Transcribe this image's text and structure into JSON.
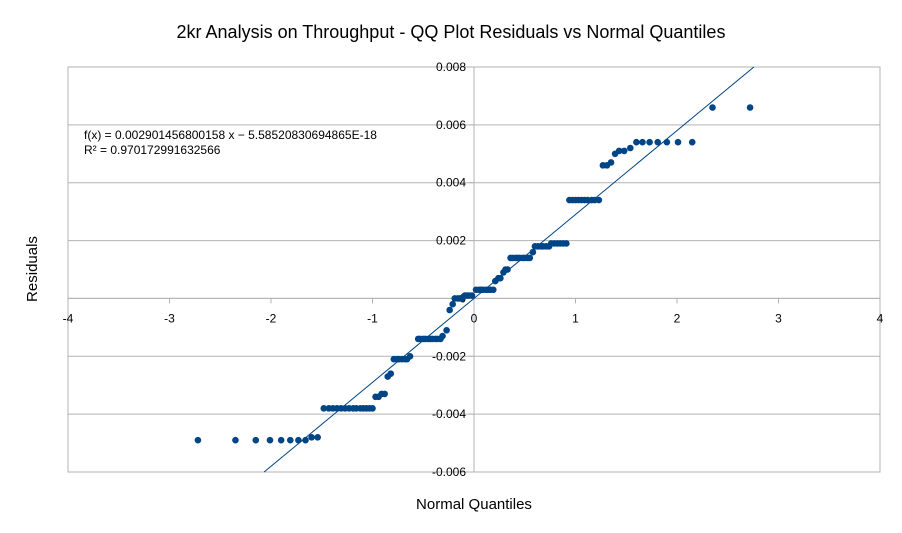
{
  "chart_data": {
    "type": "scatter",
    "title": "2kr Analysis on Throughput - QQ Plot Residuals vs Normal Quantiles",
    "xlabel": "Normal Quantiles",
    "ylabel": "Residuals",
    "xlim": [
      -4,
      4
    ],
    "ylim": [
      -0.006,
      0.008
    ],
    "x_ticks": [
      -4,
      -3,
      -2,
      -1,
      0,
      1,
      2,
      3,
      4
    ],
    "x_tick_labels": [
      "-4",
      "-3",
      "-2",
      "-1",
      "0",
      "1",
      "2",
      "3",
      "4"
    ],
    "y_ticks": [
      -0.006,
      -0.004,
      -0.002,
      0,
      0.002,
      0.004,
      0.006,
      0.008
    ],
    "y_tick_labels": [
      "-0.006",
      "-0.004",
      "-0.002",
      "0",
      "0.002",
      "0.004",
      "0.006",
      "0.008"
    ],
    "grid": "horizontal",
    "marker_color": "#004586",
    "trendline": {
      "slope": 0.002901456800158,
      "intercept": -5.58520830694865e-18,
      "equation": "f(x) = 0.002901456800158 x − 5.58520830694865E-18",
      "r_squared": "R² = 0.970172991632566",
      "color": "#004586"
    },
    "series": [
      {
        "points": [
          [
            -2.72,
            -0.0049
          ],
          [
            -2.35,
            -0.0049
          ],
          [
            -2.15,
            -0.0049
          ],
          [
            -2.01,
            -0.0049
          ],
          [
            -1.9,
            -0.0049
          ],
          [
            -1.81,
            -0.0049
          ],
          [
            -1.73,
            -0.0049
          ],
          [
            -1.66,
            -0.0049
          ],
          [
            -1.6,
            -0.0048
          ],
          [
            -1.54,
            -0.0048
          ],
          [
            -1.48,
            -0.0038
          ],
          [
            -1.43,
            -0.0038
          ],
          [
            -1.39,
            -0.0038
          ],
          [
            -1.35,
            -0.0038
          ],
          [
            -1.31,
            -0.0038
          ],
          [
            -1.27,
            -0.0038
          ],
          [
            -1.23,
            -0.0038
          ],
          [
            -1.19,
            -0.0038
          ],
          [
            -1.16,
            -0.0038
          ],
          [
            -1.12,
            -0.0038
          ],
          [
            -1.09,
            -0.0038
          ],
          [
            -1.06,
            -0.0038
          ],
          [
            -1.03,
            -0.0038
          ],
          [
            -1.0,
            -0.0038
          ],
          [
            -0.97,
            -0.0034
          ],
          [
            -0.94,
            -0.0034
          ],
          [
            -0.91,
            -0.0033
          ],
          [
            -0.88,
            -0.0033
          ],
          [
            -0.85,
            -0.0027
          ],
          [
            -0.82,
            -0.0026
          ],
          [
            -0.79,
            -0.0021
          ],
          [
            -0.76,
            -0.0021
          ],
          [
            -0.74,
            -0.0021
          ],
          [
            -0.71,
            -0.0021
          ],
          [
            -0.68,
            -0.0021
          ],
          [
            -0.66,
            -0.0021
          ],
          [
            -0.63,
            -0.002
          ],
          [
            -0.55,
            -0.0014
          ],
          [
            -0.53,
            -0.0014
          ],
          [
            -0.5,
            -0.0014
          ],
          [
            -0.48,
            -0.0014
          ],
          [
            -0.45,
            -0.0014
          ],
          [
            -0.43,
            -0.0014
          ],
          [
            -0.41,
            -0.0014
          ],
          [
            -0.38,
            -0.0014
          ],
          [
            -0.36,
            -0.0014
          ],
          [
            -0.33,
            -0.0014
          ],
          [
            -0.31,
            -0.0013
          ],
          [
            -0.27,
            -0.0011
          ],
          [
            -0.24,
            -0.0004
          ],
          [
            -0.21,
            -0.0002
          ],
          [
            -0.19,
            0.0
          ],
          [
            -0.16,
            0.0
          ],
          [
            -0.14,
            0.0
          ],
          [
            -0.12,
            0.0
          ],
          [
            -0.09,
            0.0001
          ],
          [
            -0.07,
            0.0001
          ],
          [
            -0.05,
            0.0001
          ],
          [
            -0.02,
            0.0001
          ],
          [
            0.02,
            0.0003
          ],
          [
            0.05,
            0.0003
          ],
          [
            0.07,
            0.0003
          ],
          [
            0.09,
            0.0003
          ],
          [
            0.12,
            0.0003
          ],
          [
            0.14,
            0.0003
          ],
          [
            0.16,
            0.0003
          ],
          [
            0.19,
            0.0003
          ],
          [
            0.21,
            0.0006
          ],
          [
            0.24,
            0.0007
          ],
          [
            0.26,
            0.0007
          ],
          [
            0.29,
            0.0009
          ],
          [
            0.31,
            0.001
          ],
          [
            0.33,
            0.001
          ],
          [
            0.36,
            0.0014
          ],
          [
            0.38,
            0.0014
          ],
          [
            0.41,
            0.0014
          ],
          [
            0.43,
            0.0014
          ],
          [
            0.45,
            0.0014
          ],
          [
            0.48,
            0.0014
          ],
          [
            0.5,
            0.0014
          ],
          [
            0.53,
            0.0014
          ],
          [
            0.55,
            0.0014
          ],
          [
            0.58,
            0.0016
          ],
          [
            0.6,
            0.0018
          ],
          [
            0.63,
            0.0018
          ],
          [
            0.66,
            0.0018
          ],
          [
            0.68,
            0.0018
          ],
          [
            0.71,
            0.0018
          ],
          [
            0.74,
            0.0018
          ],
          [
            0.76,
            0.0019
          ],
          [
            0.79,
            0.0019
          ],
          [
            0.82,
            0.0019
          ],
          [
            0.85,
            0.0019
          ],
          [
            0.88,
            0.0019
          ],
          [
            0.91,
            0.0019
          ],
          [
            0.94,
            0.0034
          ],
          [
            0.97,
            0.0034
          ],
          [
            1.0,
            0.0034
          ],
          [
            1.03,
            0.0034
          ],
          [
            1.06,
            0.0034
          ],
          [
            1.09,
            0.0034
          ],
          [
            1.12,
            0.0034
          ],
          [
            1.16,
            0.0034
          ],
          [
            1.19,
            0.0034
          ],
          [
            1.23,
            0.0034
          ],
          [
            1.27,
            0.0046
          ],
          [
            1.31,
            0.0046
          ],
          [
            1.35,
            0.0047
          ],
          [
            1.39,
            0.005
          ],
          [
            1.43,
            0.0051
          ],
          [
            1.48,
            0.0051
          ],
          [
            1.54,
            0.0052
          ],
          [
            1.6,
            0.0054
          ],
          [
            1.66,
            0.0054
          ],
          [
            1.73,
            0.0054
          ],
          [
            1.81,
            0.0054
          ],
          [
            1.9,
            0.0054
          ],
          [
            2.01,
            0.0054
          ],
          [
            2.15,
            0.0054
          ],
          [
            2.35,
            0.0066
          ],
          [
            2.72,
            0.0066
          ]
        ]
      }
    ]
  }
}
